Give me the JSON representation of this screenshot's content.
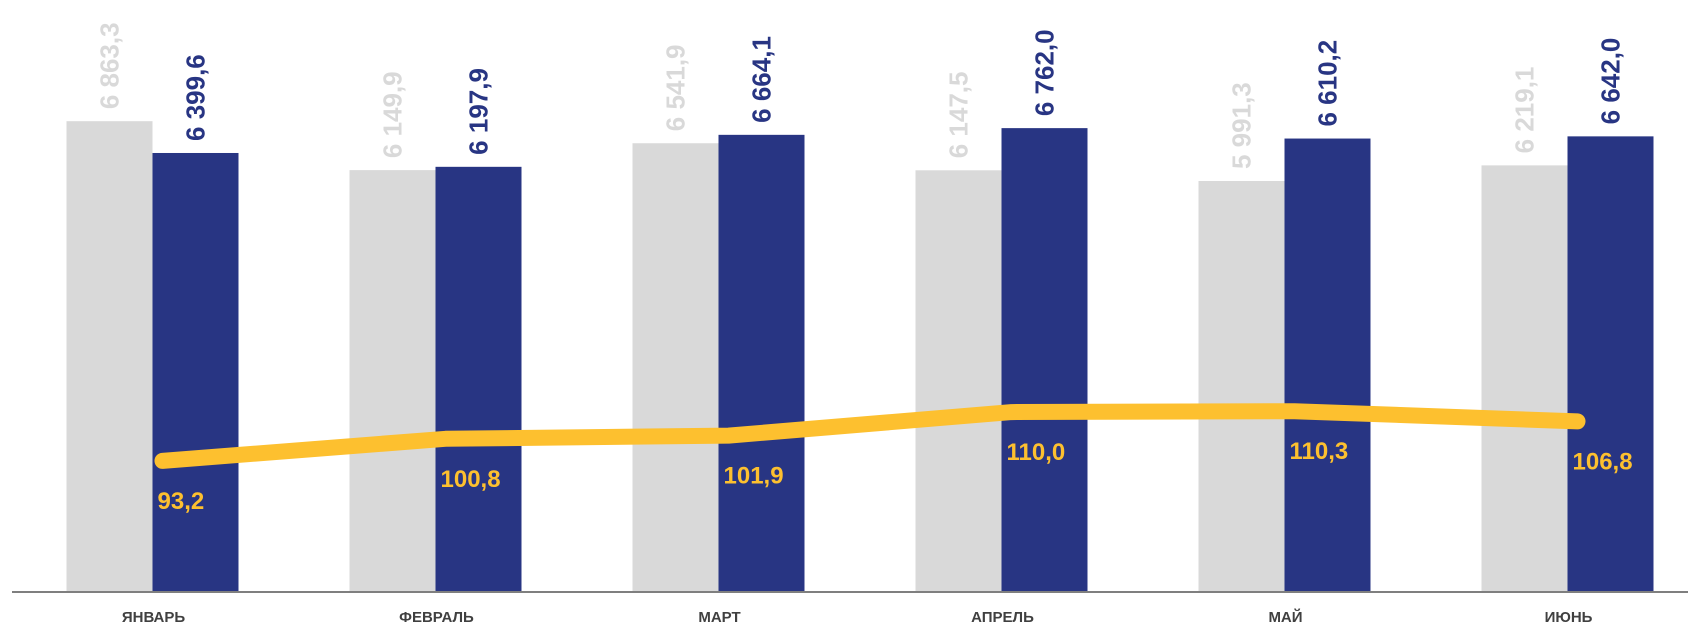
{
  "chart_data": {
    "type": "bar",
    "categories": [
      "ЯНВАРЬ",
      "ФЕВРАЛЬ",
      "МАРТ",
      "АПРЕЛЬ",
      "МАЙ",
      "ИЮНЬ"
    ],
    "series": [
      {
        "kind": "bar",
        "color": "#d9d9d9",
        "label_color": "#d9d9d9",
        "values": [
          6863.3,
          6149.9,
          6541.9,
          6147.5,
          5991.3,
          6219.1
        ],
        "labels": [
          "6 863,3",
          "6 149,9",
          "6 541,9",
          "6 147,5",
          "5 991,3",
          "6 219,1"
        ]
      },
      {
        "kind": "bar",
        "color": "#283583",
        "label_color": "#283583",
        "values": [
          6399.6,
          6197.9,
          6664.1,
          6762.0,
          6610.2,
          6642.0
        ],
        "labels": [
          "6 399,6",
          "6 197,9",
          "6 664,1",
          "6 762,0",
          "6 610,2",
          "6 642,0"
        ]
      },
      {
        "kind": "line",
        "color": "#fdc02f",
        "label_color": "#fdc02f",
        "values": [
          93.2,
          100.8,
          101.9,
          110.0,
          110.3,
          106.8
        ],
        "labels": [
          "93,2",
          "100,8",
          "101,9",
          "110,0",
          "110,3",
          "106,8"
        ]
      }
    ],
    "title": "",
    "xlabel": "",
    "ylabel": "",
    "legend": "none",
    "grid": false
  }
}
